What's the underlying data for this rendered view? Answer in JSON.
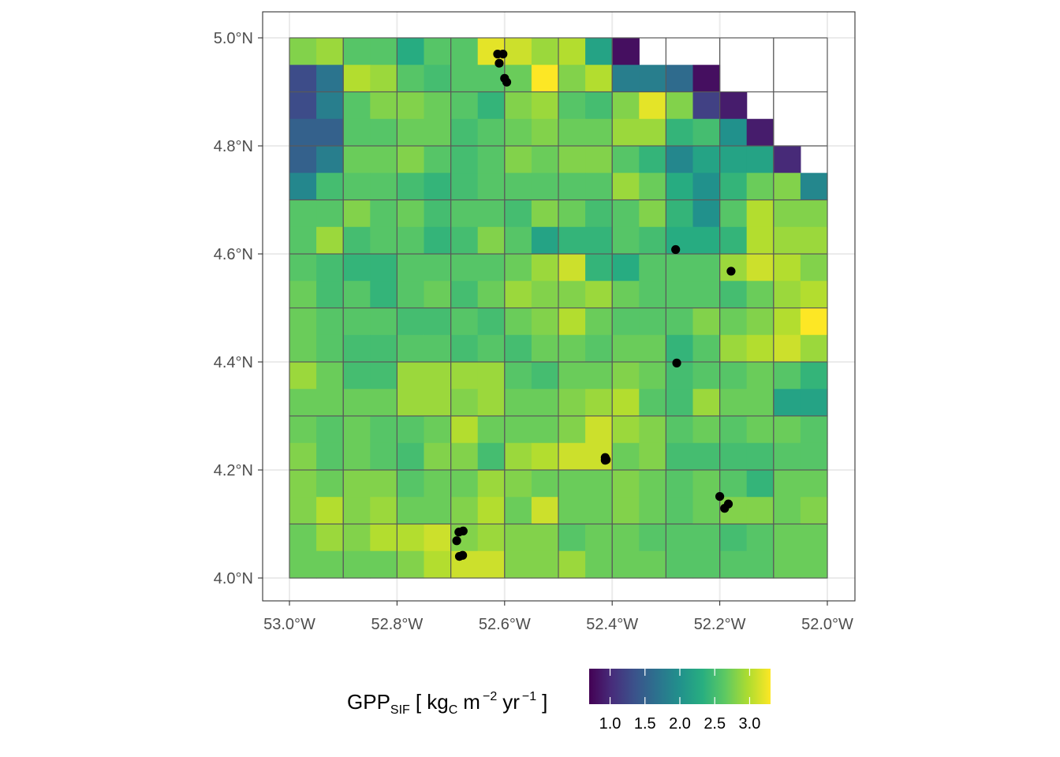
{
  "chart_data": {
    "type": "heatmap",
    "title": "",
    "xlabel": "",
    "ylabel": "",
    "x_range": [
      -53.0,
      -52.0
    ],
    "y_range": [
      4.0,
      5.0
    ],
    "x_ticks": [
      {
        "value": -53.0,
        "label": "53.0°W"
      },
      {
        "value": -52.8,
        "label": "52.8°W"
      },
      {
        "value": -52.6,
        "label": "52.6°W"
      },
      {
        "value": -52.4,
        "label": "52.4°W"
      },
      {
        "value": -52.2,
        "label": "52.2°W"
      },
      {
        "value": -52.0,
        "label": "52.0°W"
      }
    ],
    "y_ticks": [
      {
        "value": 4.0,
        "label": "4.0°N"
      },
      {
        "value": 4.2,
        "label": "4.2°N"
      },
      {
        "value": 4.4,
        "label": "4.4°N"
      },
      {
        "value": 4.6,
        "label": "4.6°N"
      },
      {
        "value": 4.8,
        "label": "4.8°N"
      },
      {
        "value": 5.0,
        "label": "5.0°N"
      }
    ],
    "grid": true,
    "cell_size_deg": 0.05,
    "outline_box_deg": 0.1,
    "colorscale": "viridis",
    "color_range": [
      0.7,
      3.3
    ],
    "colors": [
      "#440154",
      "#472d7b",
      "#3b528b",
      "#2c728e",
      "#21918c",
      "#28ae80",
      "#5ec962",
      "#addc30",
      "#fde725"
    ],
    "grid_values": [
      [
        2.8,
        2.9,
        2.6,
        2.6,
        2.3,
        2.6,
        2.6,
        3.2,
        3.1,
        2.9,
        3.0,
        2.2,
        0.8,
        null,
        null,
        null,
        null,
        null,
        null,
        null
      ],
      [
        1.3,
        1.7,
        3.0,
        2.9,
        2.6,
        2.5,
        2.6,
        2.6,
        2.7,
        3.3,
        2.8,
        3.0,
        1.8,
        1.8,
        1.6,
        0.8,
        null,
        null,
        null,
        null
      ],
      [
        1.3,
        1.8,
        2.6,
        2.8,
        2.8,
        2.7,
        2.6,
        2.4,
        2.8,
        2.9,
        2.6,
        2.5,
        2.8,
        3.2,
        2.8,
        1.2,
        0.9,
        null,
        null,
        null
      ],
      [
        1.5,
        1.5,
        2.6,
        2.6,
        2.7,
        2.7,
        2.5,
        2.6,
        2.7,
        2.8,
        2.7,
        2.7,
        2.9,
        2.9,
        2.4,
        2.5,
        2.0,
        0.9,
        null,
        null
      ],
      [
        1.5,
        1.8,
        2.7,
        2.7,
        2.8,
        2.6,
        2.5,
        2.6,
        2.8,
        2.7,
        2.8,
        2.8,
        2.6,
        2.4,
        1.9,
        2.2,
        2.2,
        2.2,
        1.0,
        null
      ],
      [
        1.9,
        2.5,
        2.6,
        2.6,
        2.5,
        2.4,
        2.5,
        2.6,
        2.6,
        2.6,
        2.6,
        2.6,
        2.9,
        2.7,
        2.3,
        2.0,
        2.4,
        2.7,
        2.8,
        1.9
      ],
      [
        2.6,
        2.6,
        2.8,
        2.6,
        2.7,
        2.5,
        2.6,
        2.6,
        2.5,
        2.8,
        2.7,
        2.5,
        2.6,
        2.8,
        2.4,
        2.0,
        2.6,
        3.0,
        2.8,
        2.8
      ],
      [
        2.6,
        2.9,
        2.5,
        2.6,
        2.6,
        2.4,
        2.5,
        2.8,
        2.6,
        2.2,
        2.4,
        2.4,
        2.6,
        2.5,
        2.3,
        2.3,
        2.4,
        3.0,
        2.9,
        2.9
      ],
      [
        2.6,
        2.5,
        2.4,
        2.4,
        2.6,
        2.6,
        2.6,
        2.6,
        2.7,
        2.9,
        3.1,
        2.4,
        2.3,
        2.6,
        2.6,
        2.6,
        2.9,
        3.1,
        3.0,
        2.8
      ],
      [
        2.7,
        2.5,
        2.6,
        2.4,
        2.6,
        2.7,
        2.5,
        2.7,
        2.9,
        2.8,
        2.8,
        2.9,
        2.7,
        2.6,
        2.6,
        2.6,
        2.5,
        2.7,
        2.9,
        3.0
      ],
      [
        2.7,
        2.6,
        2.6,
        2.6,
        2.5,
        2.5,
        2.6,
        2.5,
        2.7,
        2.8,
        3.0,
        2.7,
        2.6,
        2.6,
        2.6,
        2.8,
        2.7,
        2.8,
        3.0,
        3.3
      ],
      [
        2.7,
        2.6,
        2.5,
        2.5,
        2.6,
        2.6,
        2.5,
        2.6,
        2.5,
        2.7,
        2.7,
        2.6,
        2.7,
        2.7,
        2.4,
        2.6,
        2.9,
        3.0,
        3.1,
        2.9
      ],
      [
        2.9,
        2.7,
        2.5,
        2.5,
        2.9,
        2.9,
        2.9,
        2.9,
        2.6,
        2.5,
        2.7,
        2.7,
        2.8,
        2.7,
        2.5,
        2.6,
        2.6,
        2.7,
        2.6,
        2.4
      ],
      [
        2.7,
        2.7,
        2.7,
        2.7,
        2.9,
        2.9,
        2.8,
        2.9,
        2.7,
        2.7,
        2.8,
        2.9,
        3.0,
        2.6,
        2.5,
        2.9,
        2.7,
        2.7,
        2.2,
        2.2
      ],
      [
        2.7,
        2.6,
        2.7,
        2.6,
        2.6,
        2.7,
        3.0,
        2.7,
        2.7,
        2.7,
        2.8,
        3.1,
        2.9,
        2.8,
        2.6,
        2.7,
        2.6,
        2.7,
        2.7,
        2.6
      ],
      [
        2.8,
        2.6,
        2.7,
        2.6,
        2.5,
        2.8,
        2.8,
        2.5,
        2.9,
        3.0,
        3.1,
        3.1,
        2.7,
        2.8,
        2.5,
        2.5,
        2.5,
        2.5,
        2.6,
        2.6
      ],
      [
        2.8,
        2.7,
        2.8,
        2.8,
        2.6,
        2.7,
        2.7,
        2.9,
        2.8,
        2.7,
        2.7,
        2.7,
        2.8,
        2.7,
        2.6,
        2.7,
        2.6,
        2.4,
        2.7,
        2.7
      ],
      [
        2.8,
        3.0,
        2.8,
        2.9,
        2.7,
        2.7,
        2.8,
        3.0,
        2.7,
        3.1,
        2.7,
        2.7,
        2.8,
        2.7,
        2.6,
        2.7,
        2.8,
        2.8,
        2.7,
        2.8
      ],
      [
        2.7,
        2.9,
        2.8,
        3.0,
        3.0,
        3.1,
        2.8,
        2.9,
        2.8,
        2.8,
        2.6,
        2.7,
        2.7,
        2.6,
        2.6,
        2.6,
        2.5,
        2.6,
        2.7,
        2.7
      ],
      [
        2.7,
        2.7,
        2.7,
        2.7,
        2.8,
        3.0,
        3.1,
        3.1,
        2.8,
        2.8,
        2.9,
        2.7,
        2.7,
        2.7,
        2.6,
        2.6,
        2.6,
        2.6,
        2.7,
        2.7
      ]
    ],
    "points": [
      {
        "x": -52.613,
        "y": 4.97
      },
      {
        "x": -52.603,
        "y": 4.97
      },
      {
        "x": -52.61,
        "y": 4.953
      },
      {
        "x": -52.6,
        "y": 4.925
      },
      {
        "x": -52.596,
        "y": 4.918
      },
      {
        "x": -52.282,
        "y": 4.608
      },
      {
        "x": -52.179,
        "y": 4.568
      },
      {
        "x": -52.28,
        "y": 4.398
      },
      {
        "x": -52.413,
        "y": 4.223
      },
      {
        "x": -52.411,
        "y": 4.219
      },
      {
        "x": -52.413,
        "y": 4.218
      },
      {
        "x": -52.2,
        "y": 4.151
      },
      {
        "x": -52.184,
        "y": 4.137
      },
      {
        "x": -52.191,
        "y": 4.129
      },
      {
        "x": -52.685,
        "y": 4.085
      },
      {
        "x": -52.677,
        "y": 4.087
      },
      {
        "x": -52.689,
        "y": 4.069
      },
      {
        "x": -52.684,
        "y": 4.04
      },
      {
        "x": -52.678,
        "y": 4.042
      }
    ],
    "legend": {
      "title_main": "GPP",
      "title_sub": "SIF",
      "title_bracket_open": "[ kg",
      "title_unit_sub": "C",
      "title_m": "m",
      "title_exp_m": "−2",
      "title_yr": "yr",
      "title_exp_yr": "−1",
      "title_bracket_close": "]",
      "position": "bottom",
      "ticks": [
        {
          "value": 1.0,
          "label": "1.0"
        },
        {
          "value": 1.5,
          "label": "1.5"
        },
        {
          "value": 2.0,
          "label": "2.0"
        },
        {
          "value": 2.5,
          "label": "2.5"
        },
        {
          "value": 3.0,
          "label": "3.0"
        }
      ]
    }
  }
}
